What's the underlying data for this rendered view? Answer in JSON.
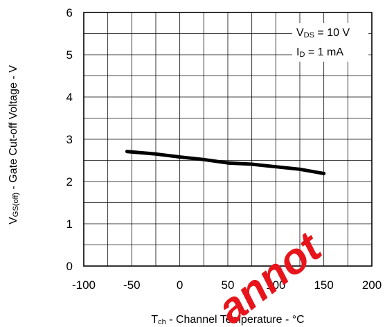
{
  "chart_data": {
    "type": "line",
    "xlabel": {
      "main": "T",
      "sub": "ch",
      "rest": " - Channel Temperature - °C"
    },
    "ylabel": {
      "main": "V",
      "sub": "GS(off)",
      "rest": " - Gate Cut-off Voltage - V"
    },
    "xlim": [
      -100,
      200
    ],
    "ylim": [
      0,
      6
    ],
    "xticks": [
      -100,
      -50,
      0,
      50,
      100,
      150,
      200
    ],
    "yticks": [
      0,
      1,
      2,
      3,
      4,
      5,
      6
    ],
    "grid": true,
    "annotations": [
      {
        "main": "V",
        "sub": "DS",
        "rest": " = 10 V"
      },
      {
        "main": "I",
        "sub": "D",
        "rest": " = 1 mA"
      }
    ],
    "series": [
      {
        "x": [
          -55,
          -25,
          0,
          25,
          50,
          75,
          100,
          125,
          150
        ],
        "y": [
          2.71,
          2.65,
          2.58,
          2.52,
          2.44,
          2.41,
          2.35,
          2.29,
          2.19
        ]
      }
    ]
  },
  "watermark": {
    "text": "annot",
    "color": "#e8141b"
  }
}
